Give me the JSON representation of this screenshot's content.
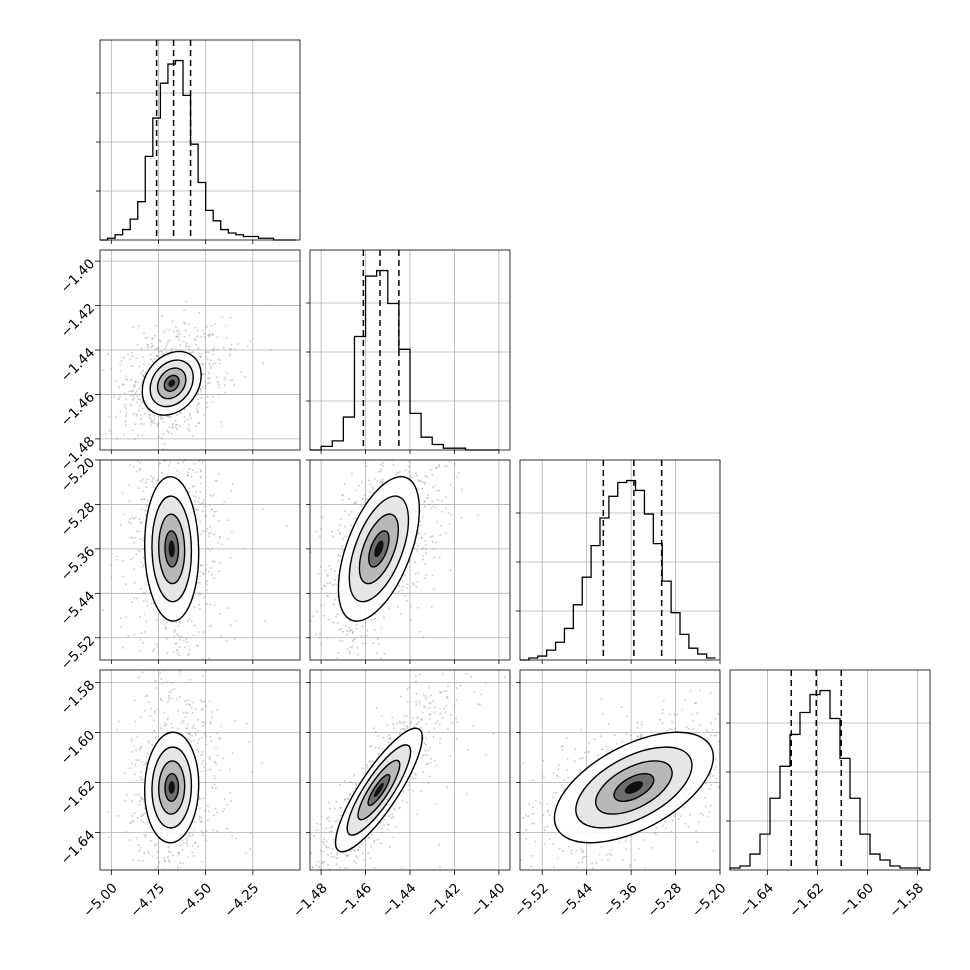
{
  "chart_data": {
    "type": "scatter",
    "title": "",
    "subtitle": "",
    "grid": true,
    "legend": "none",
    "colors": {
      "marks": "#000000",
      "grid": "#b0b0b0",
      "points": "#9a9a9a"
    },
    "parameters": [
      {
        "index": 0,
        "range": [
          -5.06,
          -4.0
        ],
        "ticks": [
          -5.0,
          -4.75,
          -4.5,
          -4.25
        ],
        "tick_labels": [
          "−5.00",
          "−4.75",
          "−4.50",
          "−4.25"
        ],
        "quantiles": [
          -4.76,
          -4.67,
          -4.58
        ],
        "histogram": {
          "edges": [
            -5.06,
            -5.02,
            -4.98,
            -4.94,
            -4.9,
            -4.86,
            -4.82,
            -4.78,
            -4.74,
            -4.7,
            -4.66,
            -4.62,
            -4.58,
            -4.54,
            -4.5,
            -4.46,
            -4.42,
            -4.38,
            -4.34,
            -4.3,
            -4.26,
            -4.22,
            -4.18,
            -4.14,
            -4.1,
            -4.06,
            -4.02
          ],
          "counts": [
            0,
            1,
            3,
            6,
            12,
            22,
            48,
            70,
            90,
            101,
            103,
            83,
            55,
            33,
            17,
            11,
            6,
            4,
            3,
            2,
            2,
            1,
            1,
            0,
            0,
            0
          ]
        }
      },
      {
        "index": 1,
        "range": [
          -1.485,
          -1.395
        ],
        "ticks": [
          -1.48,
          -1.46,
          -1.44,
          -1.42,
          -1.4
        ],
        "tick_labels": [
          "−1.48",
          "−1.46",
          "−1.44",
          "−1.42",
          "−1.40"
        ],
        "quantiles": [
          -1.461,
          -1.4535,
          -1.445
        ],
        "histogram": {
          "edges": [
            -1.485,
            -1.48,
            -1.475,
            -1.47,
            -1.465,
            -1.46,
            -1.455,
            -1.45,
            -1.445,
            -1.44,
            -1.435,
            -1.43,
            -1.425,
            -1.42,
            -1.415,
            -1.41,
            -1.405,
            -1.4
          ],
          "counts": [
            0,
            2,
            5,
            18,
            62,
            95,
            98,
            80,
            55,
            20,
            7,
            3,
            1,
            1,
            0,
            0,
            0
          ]
        }
      },
      {
        "index": 2,
        "range": [
          -5.56,
          -5.2
        ],
        "ticks": [
          -5.52,
          -5.44,
          -5.36,
          -5.28,
          -5.2
        ],
        "tick_labels": [
          "−5.52",
          "−5.44",
          "−5.36",
          "−5.28",
          "−5.20"
        ],
        "quantiles": [
          -5.41,
          -5.355,
          -5.305
        ],
        "histogram": {
          "edges": [
            -5.56,
            -5.544,
            -5.528,
            -5.512,
            -5.496,
            -5.48,
            -5.464,
            -5.448,
            -5.432,
            -5.416,
            -5.4,
            -5.384,
            -5.368,
            -5.352,
            -5.336,
            -5.32,
            -5.304,
            -5.288,
            -5.272,
            -5.256,
            -5.24,
            -5.224,
            -5.208
          ],
          "counts": [
            0,
            1,
            2,
            5,
            9,
            16,
            28,
            42,
            58,
            72,
            83,
            90,
            91,
            86,
            74,
            59,
            40,
            24,
            13,
            6,
            3,
            1
          ]
        }
      },
      {
        "index": 3,
        "range": [
          -1.655,
          -1.575
        ],
        "ticks": [
          -1.64,
          -1.62,
          -1.6,
          -1.58
        ],
        "tick_labels": [
          "−1.64",
          "−1.62",
          "−1.60",
          "−1.58"
        ],
        "quantiles": [
          -1.6305,
          -1.6205,
          -1.6105
        ],
        "histogram": {
          "edges": [
            -1.655,
            -1.651,
            -1.647,
            -1.643,
            -1.639,
            -1.635,
            -1.631,
            -1.627,
            -1.623,
            -1.619,
            -1.615,
            -1.611,
            -1.607,
            -1.603,
            -1.599,
            -1.595,
            -1.591,
            -1.587,
            -1.583,
            -1.579,
            -1.575
          ],
          "counts": [
            1,
            2,
            8,
            18,
            36,
            52,
            68,
            79,
            88,
            90,
            76,
            56,
            36,
            18,
            8,
            5,
            2,
            1,
            1,
            0
          ]
        }
      }
    ],
    "pairs": [
      {
        "x": 0,
        "y": 1,
        "center": [
          -4.68,
          -1.455
        ],
        "spread": [
          0.06,
          0.0055
        ],
        "corr": 0.25
      },
      {
        "x": 0,
        "y": 2,
        "center": [
          -4.68,
          -5.36
        ],
        "spread": [
          0.055,
          0.05
        ],
        "corr": -0.05
      },
      {
        "x": 1,
        "y": 2,
        "center": [
          -1.454,
          -5.36
        ],
        "spread": [
          0.007,
          0.05
        ],
        "corr": 0.55
      },
      {
        "x": 0,
        "y": 3,
        "center": [
          -4.68,
          -1.622
        ],
        "spread": [
          0.055,
          0.0085
        ],
        "corr": 0.05
      },
      {
        "x": 1,
        "y": 3,
        "center": [
          -1.454,
          -1.623
        ],
        "spread": [
          0.0075,
          0.0095
        ],
        "corr": 0.85
      },
      {
        "x": 2,
        "y": 3,
        "center": [
          -5.355,
          -1.622
        ],
        "spread": [
          0.055,
          0.0085
        ],
        "corr": 0.55
      }
    ]
  }
}
